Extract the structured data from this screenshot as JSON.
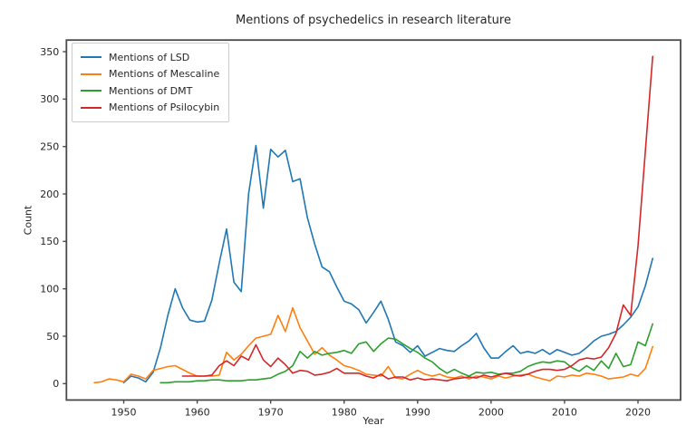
{
  "figure": {
    "title": "Mentions of psychedelics in research literature",
    "xlabel": "Year",
    "ylabel": "Count"
  },
  "chart_data": {
    "type": "line",
    "title": "Mentions of psychedelics in research literature",
    "xlabel": "Year",
    "ylabel": "Count",
    "xlim": [
      1942.2,
      2025.8
    ],
    "ylim": [
      -17.25,
      362.25
    ],
    "x_ticks": [
      1950,
      1960,
      1970,
      1980,
      1990,
      2000,
      2010,
      2020
    ],
    "y_ticks": [
      0,
      50,
      100,
      150,
      200,
      250,
      300,
      350
    ],
    "grid": false,
    "legend_position": "upper left",
    "axis_color": "#4a4a4a",
    "tick_label_color": "#262626",
    "series": [
      {
        "name": "Mentions of LSD",
        "color": "#1f77b4",
        "start_year": 1950,
        "values": [
          1,
          8,
          6,
          2,
          12,
          38,
          72,
          100,
          80,
          67,
          65,
          66,
          88,
          127,
          163,
          107,
          97,
          200,
          251,
          185,
          247,
          239,
          246,
          213,
          216,
          175,
          147,
          123,
          118,
          102,
          87,
          84,
          78,
          64,
          75,
          87,
          68,
          44,
          40,
          33,
          40,
          29,
          33,
          37,
          35,
          34,
          40,
          45,
          53,
          38,
          27,
          27,
          34,
          40,
          32,
          34,
          32,
          36,
          31,
          36,
          33,
          30,
          32,
          38,
          45,
          50,
          52,
          55,
          62,
          70,
          81,
          103,
          132
        ]
      },
      {
        "name": "Mentions of Mescaline",
        "color": "#ff7f0e",
        "start_year": 1946,
        "values": [
          1,
          2,
          5,
          4,
          2,
          10,
          8,
          5,
          14,
          16,
          18,
          19,
          15,
          11,
          8,
          8,
          8,
          9,
          33,
          25,
          31,
          40,
          48,
          50,
          52,
          72,
          55,
          80,
          59,
          45,
          31,
          38,
          30,
          25,
          19,
          17,
          14,
          10,
          9,
          8,
          18,
          6,
          5,
          10,
          14,
          10,
          8,
          10,
          7,
          6,
          8,
          5,
          8,
          7,
          5,
          8,
          6,
          8,
          9,
          10,
          7,
          5,
          3,
          8,
          7,
          9,
          8,
          11,
          10,
          8,
          5,
          6,
          7,
          10,
          8,
          16,
          39
        ]
      },
      {
        "name": "Mentions of DMT",
        "color": "#2ca02c",
        "start_year": 1955,
        "values": [
          1,
          1,
          2,
          2,
          2,
          3,
          3,
          4,
          4,
          3,
          3,
          3,
          4,
          4,
          5,
          6,
          10,
          13,
          19,
          34,
          27,
          34,
          30,
          32,
          33,
          35,
          32,
          42,
          44,
          34,
          42,
          48,
          47,
          42,
          37,
          33,
          27,
          23,
          16,
          11,
          15,
          11,
          8,
          12,
          11,
          12,
          10,
          11,
          11,
          13,
          18,
          21,
          23,
          22,
          24,
          23,
          17,
          13,
          19,
          14,
          24,
          16,
          32,
          18,
          20,
          44,
          40,
          63
        ]
      },
      {
        "name": "Mentions of Psilocybin",
        "color": "#d62728",
        "start_year": 1958,
        "values": [
          8,
          8,
          8,
          8,
          9,
          19,
          24,
          19,
          29,
          25,
          41,
          25,
          18,
          27,
          20,
          11,
          14,
          13,
          9,
          10,
          12,
          16,
          11,
          11,
          11,
          8,
          6,
          10,
          5,
          7,
          7,
          4,
          6,
          4,
          5,
          4,
          3,
          5,
          6,
          7,
          6,
          9,
          7,
          9,
          11,
          9,
          8,
          10,
          13,
          15,
          15,
          14,
          15,
          19,
          25,
          27,
          26,
          28,
          38,
          53,
          83,
          72,
          145,
          245,
          345
        ]
      }
    ]
  }
}
